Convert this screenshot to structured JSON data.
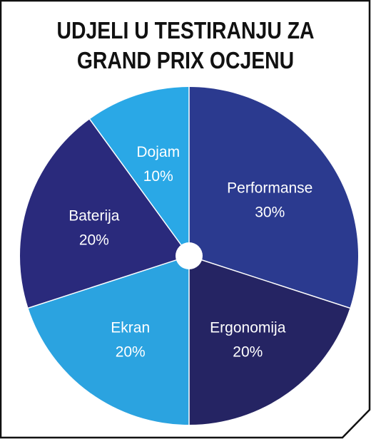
{
  "title_lines": [
    "UDJELI U TESTIRANJU ZA",
    "GRAND PRIX OCJENU"
  ],
  "chart_data": {
    "type": "pie",
    "categories": [
      "Performanse",
      "Ergonomija",
      "Ekran",
      "Baterija",
      "Dojam"
    ],
    "values": [
      30,
      20,
      20,
      20,
      10
    ],
    "value_labels": [
      "30%",
      "20%",
      "20%",
      "20%",
      "10%"
    ],
    "colors": [
      "#2b3a8f",
      "#252463",
      "#2ba3e0",
      "#2a2a7c",
      "#2aa8e6"
    ],
    "start_angle_deg": 0,
    "direction": "clockwise",
    "center_hole": true
  }
}
